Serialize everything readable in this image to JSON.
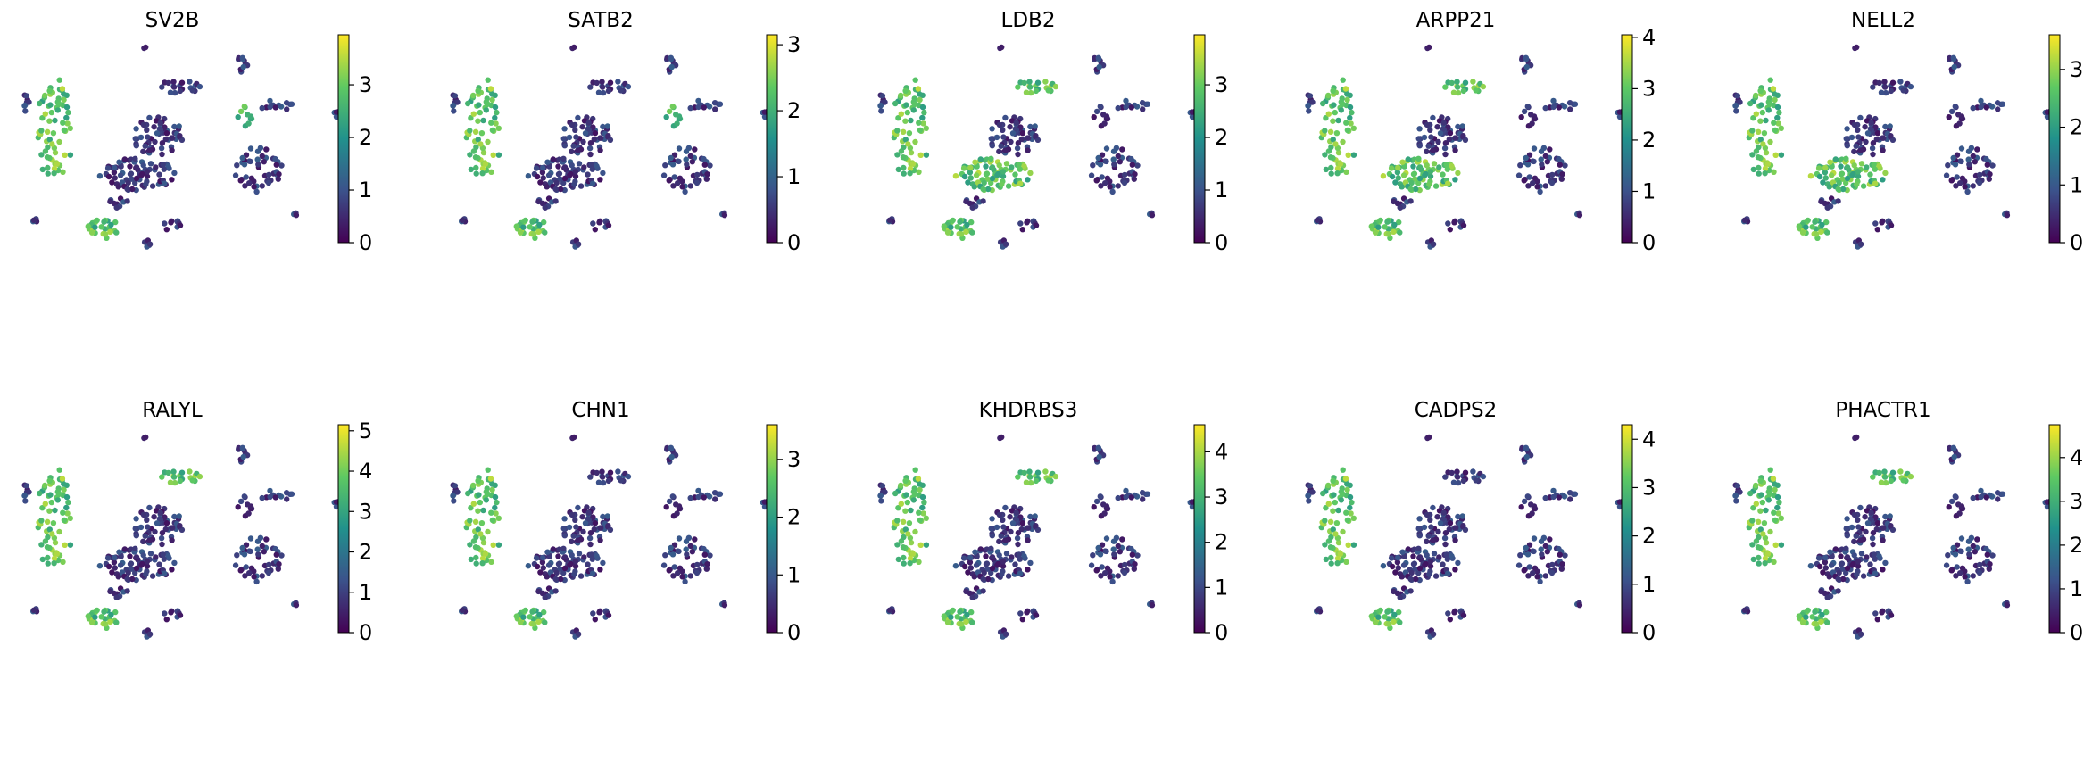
{
  "chart_data": {
    "type": "scatter",
    "description_kind": "umap-feature-plots",
    "colormap": "viridis",
    "colormap_stops": [
      "#440154",
      "#3b528b",
      "#21918c",
      "#5ec962",
      "#fde725"
    ],
    "panels": [
      {
        "title": "SV2B",
        "vmax": 3.95,
        "ticks": [
          0,
          1,
          2,
          3
        ],
        "hot_regions": [
          "left-cluster",
          "upper-right-clusters",
          "bottom-clusters"
        ]
      },
      {
        "title": "SATB2",
        "vmax": 3.15,
        "ticks": [
          0,
          1,
          2,
          3
        ],
        "hot_regions": [
          "left-cluster",
          "upper-right-clusters",
          "bottom-clusters"
        ]
      },
      {
        "title": "LDB2",
        "vmax": 3.95,
        "ticks": [
          0,
          1,
          2,
          3
        ],
        "hot_regions": [
          "left-cluster",
          "upper-band",
          "bottom-clusters",
          "center-ring"
        ]
      },
      {
        "title": "ARPP21",
        "vmax": 4.05,
        "ticks": [
          0,
          1,
          2,
          3,
          4
        ],
        "hot_regions": [
          "left-cluster",
          "upper-band",
          "bottom-clusters",
          "center-ring"
        ]
      },
      {
        "title": "NELL2",
        "vmax": 3.6,
        "ticks": [
          0,
          1,
          2,
          3
        ],
        "hot_regions": [
          "left-cluster",
          "bottom-clusters",
          "center-ring"
        ]
      },
      {
        "title": "RALYL",
        "vmax": 5.15,
        "ticks": [
          0,
          1,
          2,
          3,
          4,
          5
        ],
        "hot_regions": [
          "left-cluster",
          "upper-band",
          "bottom-clusters"
        ]
      },
      {
        "title": "CHN1",
        "vmax": 3.6,
        "ticks": [
          0,
          1,
          2,
          3
        ],
        "hot_regions": [
          "left-cluster",
          "bottom-clusters"
        ]
      },
      {
        "title": "KHDRBS3",
        "vmax": 4.6,
        "ticks": [
          0,
          1,
          2,
          3,
          4
        ],
        "hot_regions": [
          "left-cluster",
          "upper-band",
          "bottom-clusters"
        ]
      },
      {
        "title": "CADPS2",
        "vmax": 4.3,
        "ticks": [
          0,
          1,
          2,
          3,
          4
        ],
        "hot_regions": [
          "left-cluster",
          "bottom-clusters"
        ]
      },
      {
        "title": "PHACTR1",
        "vmax": 4.75,
        "ticks": [
          0,
          1,
          2,
          3,
          4
        ],
        "hot_regions": [
          "left-cluster",
          "upper-band",
          "bottom-clusters"
        ]
      }
    ]
  }
}
